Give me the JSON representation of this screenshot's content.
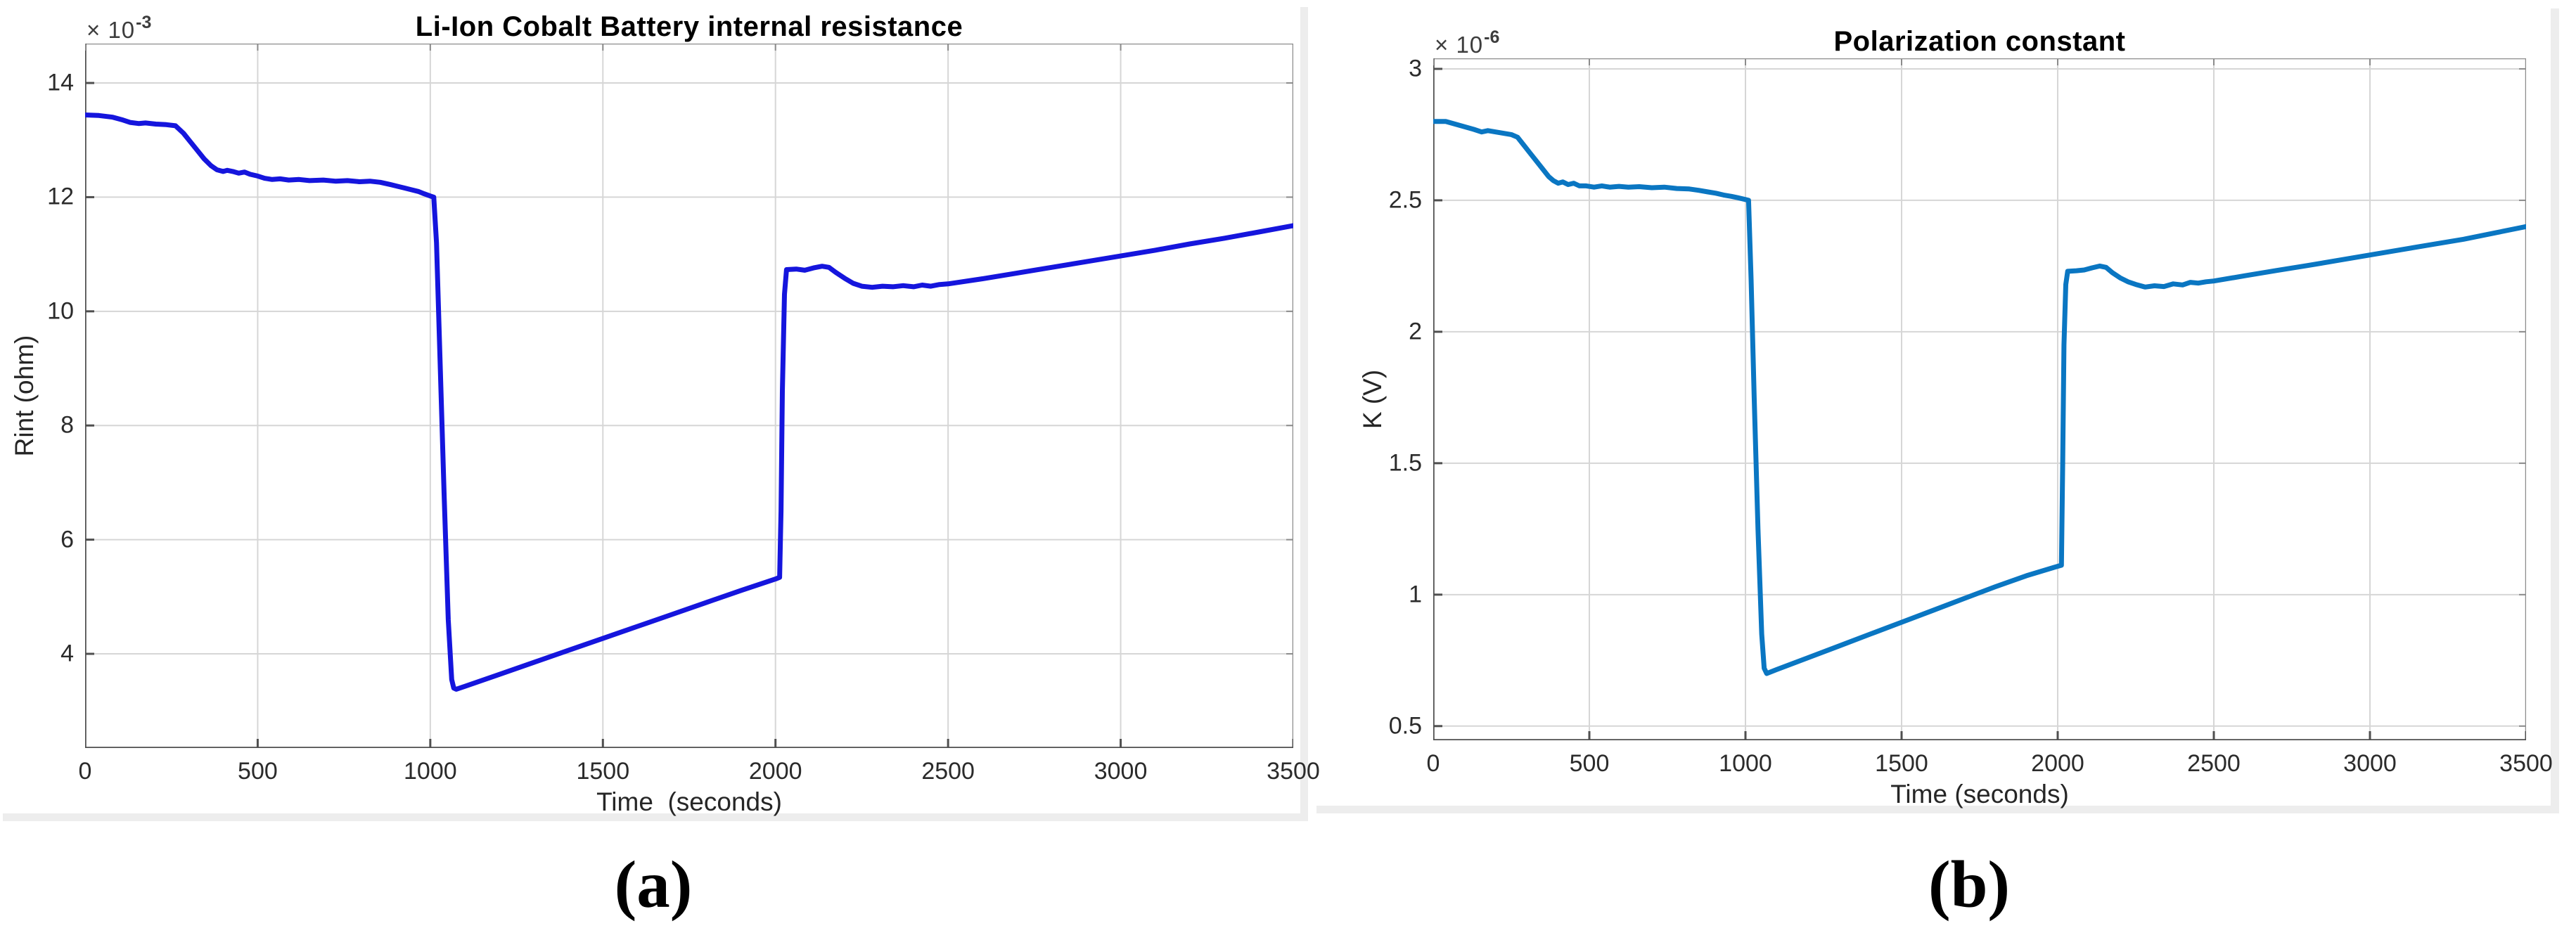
{
  "figure": {
    "captions": {
      "a": "(a)",
      "b": "(b)"
    }
  },
  "chart_data": [
    {
      "id": "a",
      "type": "line",
      "title": "Li-Ion Cobalt Battery internal resistance",
      "xlabel": "Time  (seconds)",
      "ylabel": "Rint (ohm)",
      "y_scale_base": "× 10",
      "y_scale_exp": "-3",
      "xlim": [
        0,
        3500
      ],
      "ylim": [
        2.35,
        14.69
      ],
      "xticks": [
        0,
        500,
        1000,
        1500,
        2000,
        2500,
        3000,
        3500
      ],
      "yticks": [
        4,
        6,
        8,
        10,
        12,
        14
      ],
      "grid": true,
      "legend": "none",
      "line_color": "#1515dd",
      "series_name": "internal resistance",
      "points": [
        [
          0,
          13.44
        ],
        [
          40,
          13.43
        ],
        [
          80,
          13.4
        ],
        [
          110,
          13.35
        ],
        [
          130,
          13.31
        ],
        [
          155,
          13.29
        ],
        [
          175,
          13.3
        ],
        [
          205,
          13.28
        ],
        [
          235,
          13.27
        ],
        [
          262,
          13.25
        ],
        [
          285,
          13.12
        ],
        [
          305,
          12.97
        ],
        [
          325,
          12.82
        ],
        [
          345,
          12.67
        ],
        [
          365,
          12.55
        ],
        [
          382,
          12.48
        ],
        [
          400,
          12.45
        ],
        [
          412,
          12.47
        ],
        [
          428,
          12.45
        ],
        [
          445,
          12.42
        ],
        [
          462,
          12.44
        ],
        [
          478,
          12.4
        ],
        [
          500,
          12.37
        ],
        [
          520,
          12.33
        ],
        [
          542,
          12.31
        ],
        [
          565,
          12.32
        ],
        [
          590,
          12.3
        ],
        [
          620,
          12.31
        ],
        [
          650,
          12.29
        ],
        [
          690,
          12.3
        ],
        [
          725,
          12.28
        ],
        [
          760,
          12.29
        ],
        [
          795,
          12.27
        ],
        [
          825,
          12.28
        ],
        [
          855,
          12.26
        ],
        [
          885,
          12.22
        ],
        [
          905,
          12.19
        ],
        [
          925,
          12.16
        ],
        [
          945,
          12.13
        ],
        [
          965,
          12.1
        ],
        [
          982,
          12.06
        ],
        [
          1000,
          12.02
        ],
        [
          1010,
          12.0
        ],
        [
          1018,
          11.2
        ],
        [
          1028,
          9.2
        ],
        [
          1040,
          6.8
        ],
        [
          1052,
          4.6
        ],
        [
          1062,
          3.55
        ],
        [
          1068,
          3.4
        ],
        [
          1075,
          3.38
        ],
        [
          1100,
          3.43
        ],
        [
          1200,
          3.64
        ],
        [
          1300,
          3.85
        ],
        [
          1400,
          4.06
        ],
        [
          1500,
          4.27
        ],
        [
          1600,
          4.48
        ],
        [
          1700,
          4.69
        ],
        [
          1800,
          4.9
        ],
        [
          1900,
          5.11
        ],
        [
          2000,
          5.31
        ],
        [
          2012,
          5.34
        ],
        [
          2016,
          6.5
        ],
        [
          2020,
          8.6
        ],
        [
          2026,
          10.3
        ],
        [
          2032,
          10.73
        ],
        [
          2060,
          10.74
        ],
        [
          2085,
          10.72
        ],
        [
          2110,
          10.76
        ],
        [
          2135,
          10.79
        ],
        [
          2155,
          10.77
        ],
        [
          2175,
          10.68
        ],
        [
          2200,
          10.58
        ],
        [
          2225,
          10.49
        ],
        [
          2250,
          10.44
        ],
        [
          2280,
          10.42
        ],
        [
          2310,
          10.44
        ],
        [
          2340,
          10.43
        ],
        [
          2370,
          10.45
        ],
        [
          2400,
          10.43
        ],
        [
          2425,
          10.46
        ],
        [
          2450,
          10.44
        ],
        [
          2475,
          10.47
        ],
        [
          2500,
          10.48
        ],
        [
          2600,
          10.57
        ],
        [
          2700,
          10.67
        ],
        [
          2800,
          10.77
        ],
        [
          2900,
          10.87
        ],
        [
          3000,
          10.97
        ],
        [
          3100,
          11.07
        ],
        [
          3200,
          11.18
        ],
        [
          3300,
          11.28
        ],
        [
          3400,
          11.39
        ],
        [
          3500,
          11.5
        ]
      ]
    },
    {
      "id": "b",
      "type": "line",
      "title": "Polarization constant",
      "xlabel": "Time (seconds)",
      "ylabel": "K (V)",
      "y_scale_base": "× 10",
      "y_scale_exp": "-6",
      "xlim": [
        0,
        3500
      ],
      "ylim": [
        0.446,
        3.04
      ],
      "xticks": [
        0,
        500,
        1000,
        1500,
        2000,
        2500,
        3000,
        3500
      ],
      "yticks": [
        0.5,
        1,
        1.5,
        2,
        2.5,
        3
      ],
      "grid": true,
      "legend": "none",
      "line_color": "#0a76c2",
      "series_name": "polarization constant",
      "points": [
        [
          0,
          2.8
        ],
        [
          40,
          2.8
        ],
        [
          70,
          2.79
        ],
        [
          100,
          2.78
        ],
        [
          130,
          2.77
        ],
        [
          155,
          2.76
        ],
        [
          175,
          2.765
        ],
        [
          200,
          2.76
        ],
        [
          225,
          2.755
        ],
        [
          250,
          2.75
        ],
        [
          270,
          2.74
        ],
        [
          290,
          2.71
        ],
        [
          310,
          2.68
        ],
        [
          330,
          2.65
        ],
        [
          350,
          2.62
        ],
        [
          370,
          2.59
        ],
        [
          385,
          2.575
        ],
        [
          400,
          2.565
        ],
        [
          415,
          2.57
        ],
        [
          432,
          2.56
        ],
        [
          450,
          2.565
        ],
        [
          468,
          2.555
        ],
        [
          490,
          2.555
        ],
        [
          515,
          2.55
        ],
        [
          540,
          2.555
        ],
        [
          565,
          2.55
        ],
        [
          595,
          2.553
        ],
        [
          625,
          2.55
        ],
        [
          660,
          2.552
        ],
        [
          700,
          2.548
        ],
        [
          740,
          2.55
        ],
        [
          780,
          2.545
        ],
        [
          820,
          2.543
        ],
        [
          850,
          2.538
        ],
        [
          880,
          2.532
        ],
        [
          905,
          2.527
        ],
        [
          930,
          2.52
        ],
        [
          955,
          2.515
        ],
        [
          975,
          2.51
        ],
        [
          1000,
          2.503
        ],
        [
          1010,
          2.5
        ],
        [
          1018,
          2.2
        ],
        [
          1028,
          1.75
        ],
        [
          1040,
          1.25
        ],
        [
          1052,
          0.85
        ],
        [
          1060,
          0.72
        ],
        [
          1068,
          0.7
        ],
        [
          1100,
          0.715
        ],
        [
          1200,
          0.76
        ],
        [
          1300,
          0.805
        ],
        [
          1400,
          0.85
        ],
        [
          1500,
          0.895
        ],
        [
          1600,
          0.94
        ],
        [
          1700,
          0.985
        ],
        [
          1800,
          1.03
        ],
        [
          1900,
          1.072
        ],
        [
          2000,
          1.108
        ],
        [
          2012,
          1.112
        ],
        [
          2016,
          1.5
        ],
        [
          2020,
          1.95
        ],
        [
          2026,
          2.18
        ],
        [
          2032,
          2.23
        ],
        [
          2060,
          2.232
        ],
        [
          2085,
          2.235
        ],
        [
          2110,
          2.243
        ],
        [
          2135,
          2.25
        ],
        [
          2155,
          2.245
        ],
        [
          2175,
          2.225
        ],
        [
          2200,
          2.205
        ],
        [
          2225,
          2.19
        ],
        [
          2250,
          2.18
        ],
        [
          2280,
          2.17
        ],
        [
          2310,
          2.175
        ],
        [
          2340,
          2.172
        ],
        [
          2370,
          2.182
        ],
        [
          2400,
          2.178
        ],
        [
          2425,
          2.188
        ],
        [
          2450,
          2.185
        ],
        [
          2475,
          2.19
        ],
        [
          2500,
          2.193
        ],
        [
          2600,
          2.213
        ],
        [
          2700,
          2.233
        ],
        [
          2800,
          2.252
        ],
        [
          2900,
          2.272
        ],
        [
          3000,
          2.292
        ],
        [
          3100,
          2.312
        ],
        [
          3200,
          2.332
        ],
        [
          3300,
          2.352
        ],
        [
          3400,
          2.376
        ],
        [
          3500,
          2.4
        ]
      ]
    }
  ]
}
